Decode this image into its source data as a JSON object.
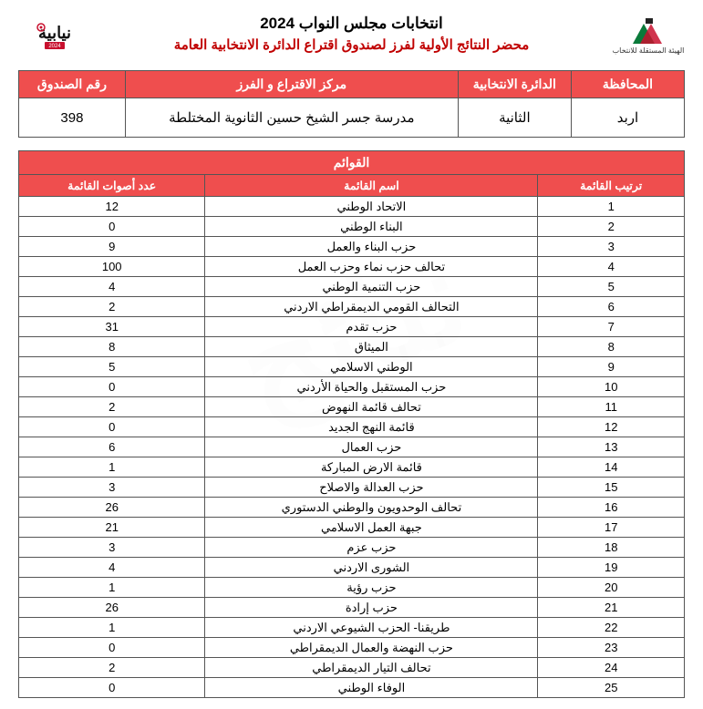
{
  "header": {
    "title1": "انتخابات مجلس النواب 2024",
    "title2": "محضر النتائج الأولية لفرز لصندوق اقتراع الدائرة الانتخابية العامة",
    "logo_right_text": "الهيئة المستقلة للانتخاب",
    "logo_left_year": "2024"
  },
  "info": {
    "headers": {
      "governorate": "المحافظة",
      "district": "الدائرة الانتخابية",
      "center": "مركز الاقتراع و الفرز",
      "box": "رقم الصندوق"
    },
    "values": {
      "governorate": "اربد",
      "district": "الثانية",
      "center": "مدرسة جسر الشيخ حسين الثانوية المختلطة",
      "box": "398"
    }
  },
  "lists": {
    "super_header": "القوائم",
    "headers": {
      "rank": "ترتيب القائمة",
      "name": "اسم القائمة",
      "votes": "عدد أصوات القائمة"
    },
    "rows": [
      {
        "rank": "1",
        "name": "الاتحاد الوطني",
        "votes": "12"
      },
      {
        "rank": "2",
        "name": "البناء الوطني",
        "votes": "0"
      },
      {
        "rank": "3",
        "name": "حزب البناء والعمل",
        "votes": "9"
      },
      {
        "rank": "4",
        "name": "تحالف حزب نماء وحزب العمل",
        "votes": "100"
      },
      {
        "rank": "5",
        "name": "حزب التنمية الوطني",
        "votes": "4"
      },
      {
        "rank": "6",
        "name": "التحالف القومي الديمقراطي الاردني",
        "votes": "2"
      },
      {
        "rank": "7",
        "name": "حزب تقدم",
        "votes": "31"
      },
      {
        "rank": "8",
        "name": "الميثاق",
        "votes": "8"
      },
      {
        "rank": "9",
        "name": "الوطني الاسلامي",
        "votes": "5"
      },
      {
        "rank": "10",
        "name": "حزب المستقبل والحياة الأردني",
        "votes": "0"
      },
      {
        "rank": "11",
        "name": "تحالف قائمة النهوض",
        "votes": "2"
      },
      {
        "rank": "12",
        "name": "قائمة النهج الجديد",
        "votes": "0"
      },
      {
        "rank": "13",
        "name": "حزب العمال",
        "votes": "6"
      },
      {
        "rank": "14",
        "name": "قائمة الارض المباركة",
        "votes": "1"
      },
      {
        "rank": "15",
        "name": "حزب العدالة والاصلاح",
        "votes": "3"
      },
      {
        "rank": "16",
        "name": "تحالف الوحدويون والوطني الدستوري",
        "votes": "26"
      },
      {
        "rank": "17",
        "name": "جبهة العمل الاسلامي",
        "votes": "21"
      },
      {
        "rank": "18",
        "name": "حزب عزم",
        "votes": "3"
      },
      {
        "rank": "19",
        "name": "الشورى الاردني",
        "votes": "4"
      },
      {
        "rank": "20",
        "name": "حزب رؤية",
        "votes": "1"
      },
      {
        "rank": "21",
        "name": "حزب إرادة",
        "votes": "26"
      },
      {
        "rank": "22",
        "name": "طريقنا- الحزب الشيوعي الاردني",
        "votes": "1"
      },
      {
        "rank": "23",
        "name": "حزب النهضة والعمال الديمقراطي",
        "votes": "0"
      },
      {
        "rank": "24",
        "name": "تحالف التيار الديمقراطي",
        "votes": "2"
      },
      {
        "rank": "25",
        "name": "الوفاء الوطني",
        "votes": "0"
      }
    ]
  },
  "colors": {
    "header_bg": "#ef4e4e",
    "title2_color": "#c00000"
  }
}
